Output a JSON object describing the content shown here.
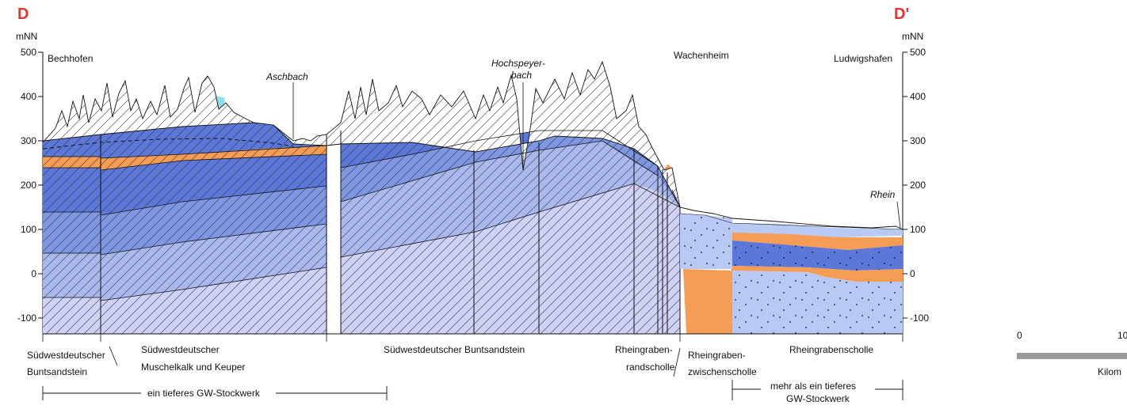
{
  "section": {
    "start_marker": "D",
    "end_marker": "D'",
    "unit_left": "mNN",
    "unit_right": "mNN"
  },
  "y_axis": {
    "ticks": [
      "500",
      "400",
      "300",
      "200",
      "100",
      "0",
      "-100"
    ],
    "values": [
      500,
      400,
      300,
      200,
      100,
      0,
      -100
    ]
  },
  "places": {
    "bechhofen": "Bechhofen",
    "aschbach": "Aschbach",
    "hochspeyer_1": "Hochspeyer-",
    "hochspeyer_2": "bach",
    "wachenheim": "Wachenheim",
    "ludwigshafen": "Ludwigshafen",
    "rhein": "Rhein"
  },
  "zones": {
    "z1_line1": "Südwestdeutscher",
    "z1_line2": "Buntsandstein",
    "z2_line1": "Südwestdeutscher",
    "z2_line2": "Muschelkalk und Keuper",
    "z3": "Südwestdeutscher Buntsandstein",
    "z4_line1": "Rheingraben-",
    "z4_line2": "randscholle",
    "z5_line1": "Rheingraben-",
    "z5_line2": "zwischenscholle",
    "z6": "Rheingrabenscholle"
  },
  "gw": {
    "left": "ein tieferes GW-Stockwerk",
    "right_1": "mehr als ein tieferes",
    "right_2": "GW-Stockwerk"
  },
  "scale": {
    "zero": "0",
    "ten": "10",
    "unit": "Kilom"
  },
  "colors": {
    "upper_blue": "#5b78d8",
    "mid_blue": "#7e97e3",
    "light_blue": "#a9b9ee",
    "lavender": "#cfd1f5",
    "orange": "#f59c55",
    "cyan": "#8fe0ec",
    "graben_blue": "#b8c9f4"
  }
}
